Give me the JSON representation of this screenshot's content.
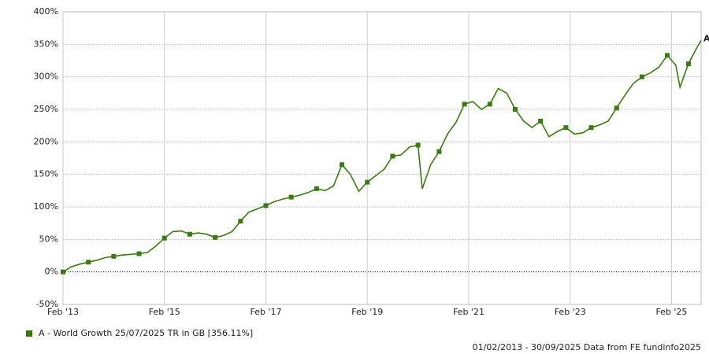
{
  "chart_data": {
    "type": "line",
    "x": [
      "2013-02",
      "2013-04",
      "2013-06",
      "2013-08",
      "2013-10",
      "2013-12",
      "2014-02",
      "2014-04",
      "2014-06",
      "2014-08",
      "2014-10",
      "2014-12",
      "2015-02",
      "2015-04",
      "2015-06",
      "2015-08",
      "2015-10",
      "2015-12",
      "2016-02",
      "2016-04",
      "2016-06",
      "2016-08",
      "2016-10",
      "2016-12",
      "2017-02",
      "2017-04",
      "2017-06",
      "2017-08",
      "2017-10",
      "2017-12",
      "2018-02",
      "2018-04",
      "2018-06",
      "2018-08",
      "2018-10",
      "2018-12",
      "2019-02",
      "2019-04",
      "2019-06",
      "2019-08",
      "2019-10",
      "2019-12",
      "2020-02",
      "2020-03",
      "2020-05",
      "2020-07",
      "2020-09",
      "2020-11",
      "2021-01",
      "2021-03",
      "2021-05",
      "2021-07",
      "2021-09",
      "2021-11",
      "2022-01",
      "2022-03",
      "2022-05",
      "2022-07",
      "2022-09",
      "2022-11",
      "2023-01",
      "2023-03",
      "2023-05",
      "2023-07",
      "2023-09",
      "2023-11",
      "2024-01",
      "2024-03",
      "2024-05",
      "2024-07",
      "2024-09",
      "2024-11",
      "2025-01",
      "2025-03",
      "2025-04",
      "2025-06",
      "2025-08",
      "2025-09"
    ],
    "series": [
      {
        "name": "A - World Growth 25/07/2025 TR in GB [356.11%]",
        "color": "#3a7a10",
        "end_label": "A",
        "values": [
          0,
          8,
          12,
          15,
          18,
          22,
          24,
          26,
          27,
          28,
          30,
          40,
          52,
          62,
          63,
          58,
          60,
          58,
          53,
          56,
          62,
          78,
          92,
          97,
          102,
          108,
          112,
          115,
          118,
          122,
          128,
          125,
          132,
          165,
          150,
          124,
          138,
          148,
          158,
          178,
          180,
          192,
          195,
          128,
          165,
          185,
          212,
          230,
          258,
          262,
          250,
          258,
          282,
          275,
          250,
          232,
          222,
          232,
          208,
          216,
          222,
          212,
          214,
          222,
          226,
          232,
          252,
          272,
          290,
          300,
          306,
          315,
          333,
          318,
          284,
          320,
          345,
          356
        ]
      }
    ],
    "xlim": [
      "2013-02",
      "2025-09"
    ],
    "xticks": [
      {
        "value": "2013-02",
        "label": "Feb '13"
      },
      {
        "value": "2015-02",
        "label": "Feb '15"
      },
      {
        "value": "2017-02",
        "label": "Feb '17"
      },
      {
        "value": "2019-02",
        "label": "Feb '19"
      },
      {
        "value": "2021-02",
        "label": "Feb '21"
      },
      {
        "value": "2023-02",
        "label": "Feb '23"
      },
      {
        "value": "2025-02",
        "label": "Feb '25"
      }
    ],
    "ylim": [
      -50,
      400
    ],
    "yticks": [
      {
        "value": -50,
        "label": "-50%"
      },
      {
        "value": 0,
        "label": "0%"
      },
      {
        "value": 50,
        "label": "50%"
      },
      {
        "value": 100,
        "label": "100%"
      },
      {
        "value": 150,
        "label": "150%"
      },
      {
        "value": 200,
        "label": "200%"
      },
      {
        "value": 250,
        "label": "250%"
      },
      {
        "value": 300,
        "label": "300%"
      },
      {
        "value": 350,
        "label": "350%"
      },
      {
        "value": 400,
        "label": "400%"
      }
    ],
    "grid": true,
    "footer": "01/02/2013 - 30/09/2025 Data from FE fundinfo2025"
  }
}
